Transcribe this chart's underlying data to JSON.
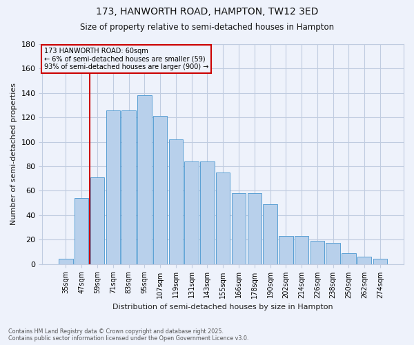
{
  "title1": "173, HANWORTH ROAD, HAMPTON, TW12 3ED",
  "title2": "Size of property relative to semi-detached houses in Hampton",
  "xlabel": "Distribution of semi-detached houses by size in Hampton",
  "ylabel": "Number of semi-detached properties",
  "categories": [
    "35sqm",
    "47sqm",
    "59sqm",
    "71sqm",
    "83sqm",
    "95sqm",
    "107sqm",
    "119sqm",
    "131sqm",
    "143sqm",
    "155sqm",
    "166sqm",
    "178sqm",
    "190sqm",
    "202sqm",
    "214sqm",
    "226sqm",
    "238sqm",
    "250sqm",
    "262sqm",
    "274sqm"
  ],
  "values": [
    4,
    54,
    71,
    126,
    126,
    138,
    121,
    102,
    84,
    84,
    75,
    58,
    58,
    49,
    23,
    23,
    19,
    17,
    9,
    6,
    4
  ],
  "bar_color": "#b8d0eb",
  "bar_edge_color": "#5a9fd4",
  "annotation_title": "173 HANWORTH ROAD: 60sqm",
  "annotation_line1": "← 6% of semi-detached houses are smaller (59)",
  "annotation_line2": "93% of semi-detached houses are larger (900) →",
  "vline_color": "#cc0000",
  "annotation_box_edgecolor": "#cc0000",
  "ylim_max": 180,
  "yticks": [
    0,
    20,
    40,
    60,
    80,
    100,
    120,
    140,
    160,
    180
  ],
  "footer1": "Contains HM Land Registry data © Crown copyright and database right 2025.",
  "footer2": "Contains public sector information licensed under the Open Government Licence v3.0.",
  "bg_color": "#eef2fb",
  "grid_color": "#c0cce0"
}
